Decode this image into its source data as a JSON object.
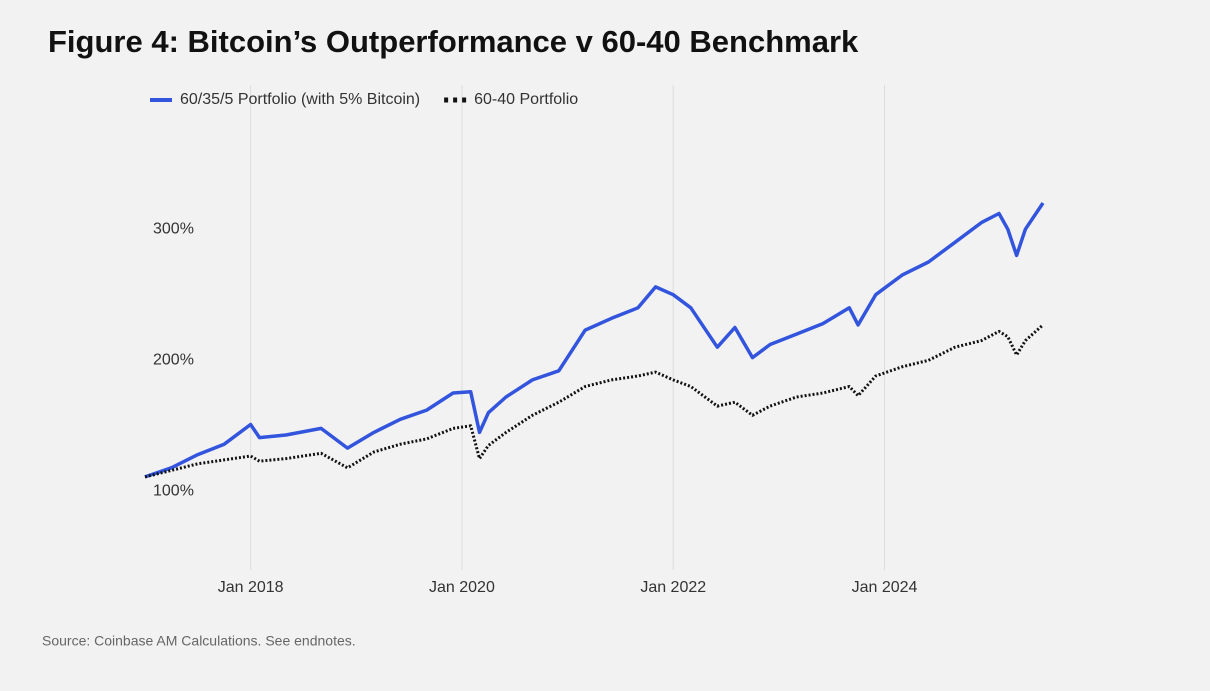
{
  "chart_data": {
    "type": "line",
    "title": "Figure 4: Bitcoin’s Outperformance v 60-40 Benchmark",
    "source": "Source: Coinbase AM Calculations. See endnotes.",
    "x": [
      "2017-01",
      "2017-04",
      "2017-07",
      "2017-10",
      "2018-01",
      "2018-02",
      "2018-05",
      "2018-09",
      "2018-12",
      "2019-03",
      "2019-06",
      "2019-09",
      "2019-12",
      "2020-02",
      "2020-03",
      "2020-04",
      "2020-06",
      "2020-09",
      "2020-12",
      "2021-03",
      "2021-06",
      "2021-09",
      "2021-11",
      "2022-01",
      "2022-03",
      "2022-06",
      "2022-08",
      "2022-10",
      "2022-12",
      "2023-03",
      "2023-06",
      "2023-09",
      "2023-10",
      "2023-12",
      "2024-03",
      "2024-06",
      "2024-09",
      "2024-12",
      "2025-02",
      "2025-03",
      "2025-04",
      "2025-05",
      "2025-07"
    ],
    "series": [
      {
        "name": "60/35/5 Portfolio (with 5% Bitcoin)",
        "color": "#3355dd",
        "style": "solid",
        "values": [
          111,
          118,
          128,
          136,
          151,
          141,
          143,
          148,
          133,
          145,
          155,
          162,
          175,
          176,
          145,
          160,
          172,
          185,
          192,
          223,
          232,
          240,
          256,
          250,
          240,
          210,
          225,
          202,
          212,
          220,
          228,
          240,
          227,
          250,
          265,
          275,
          290,
          305,
          312,
          300,
          280,
          300,
          320
        ]
      },
      {
        "name": "60-40 Portfolio",
        "color": "#111111",
        "style": "dotted",
        "values": [
          111,
          116,
          121,
          124,
          127,
          123,
          125,
          129,
          118,
          130,
          136,
          140,
          148,
          150,
          125,
          135,
          145,
          158,
          168,
          180,
          185,
          188,
          191,
          185,
          180,
          165,
          168,
          158,
          165,
          172,
          175,
          180,
          173,
          188,
          195,
          200,
          210,
          215,
          222,
          218,
          204,
          215,
          227
        ]
      }
    ],
    "xlim": [
      "2017-01",
      "2025-07"
    ],
    "xticks": [
      {
        "value": "2018-01",
        "label": "Jan 2018"
      },
      {
        "value": "2020-01",
        "label": "Jan 2020"
      },
      {
        "value": "2022-01",
        "label": "Jan 2022"
      },
      {
        "value": "2024-01",
        "label": "Jan 2024"
      }
    ],
    "ylim": [
      40,
      410
    ],
    "yticks": [
      {
        "value": 100,
        "label": "100%"
      },
      {
        "value": 200,
        "label": "200%"
      },
      {
        "value": 300,
        "label": "300%"
      }
    ],
    "grid": "x",
    "legend": "top"
  }
}
